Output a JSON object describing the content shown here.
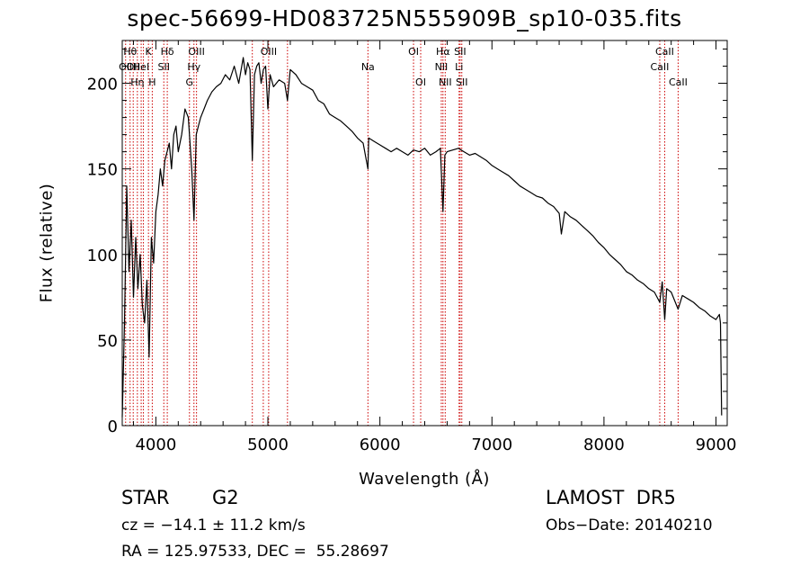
{
  "title": "spec-56699-HD083725N555909B_sp10-035.fits",
  "info": {
    "object_class": "STAR",
    "subclass": "G2",
    "survey": "LAMOST  DR5",
    "cz": "cz = −14.1 ± 11.2 km/s",
    "obs_date": "Obs−Date: 20140210",
    "coords": "RA = 125.97533, DEC =  55.28697"
  },
  "chart_data": {
    "type": "line",
    "xlabel": "Wavelength (Å)",
    "ylabel": "Flux (relative)",
    "xlim": [
      3700,
      9100
    ],
    "ylim": [
      0,
      225
    ],
    "xticks": [
      4000,
      5000,
      6000,
      7000,
      8000,
      9000
    ],
    "yticks": [
      0,
      50,
      100,
      150,
      200
    ],
    "line_color": "#000000",
    "marker_color": "#cc0000",
    "series": [
      {
        "x": [
          3700,
          3720,
          3740,
          3760,
          3780,
          3800,
          3820,
          3840,
          3860,
          3880,
          3900,
          3920,
          3940,
          3960,
          3980,
          4000,
          4020,
          4040,
          4060,
          4080,
          4100,
          4120,
          4140,
          4160,
          4180,
          4200,
          4230,
          4260,
          4290,
          4320,
          4340,
          4360,
          4380,
          4400,
          4430,
          4460,
          4500,
          4540,
          4580,
          4620,
          4660,
          4700,
          4740,
          4780,
          4800,
          4820,
          4840,
          4861,
          4880,
          4900,
          4920,
          4940,
          4960,
          4980,
          5000,
          5020,
          5050,
          5100,
          5150,
          5175,
          5200,
          5250,
          5300,
          5350,
          5400,
          5450,
          5500,
          5550,
          5600,
          5650,
          5700,
          5750,
          5800,
          5850,
          5893,
          5900,
          5950,
          6000,
          6050,
          6100,
          6150,
          6200,
          6250,
          6300,
          6350,
          6400,
          6450,
          6500,
          6540,
          6563,
          6580,
          6600,
          6650,
          6700,
          6750,
          6800,
          6850,
          6900,
          6950,
          7000,
          7050,
          7100,
          7150,
          7200,
          7250,
          7300,
          7350,
          7400,
          7450,
          7500,
          7550,
          7600,
          7620,
          7650,
          7700,
          7750,
          7800,
          7850,
          7900,
          7950,
          8000,
          8050,
          8100,
          8150,
          8200,
          8250,
          8300,
          8350,
          8400,
          8450,
          8498,
          8520,
          8542,
          8560,
          8600,
          8662,
          8700,
          8750,
          8800,
          8850,
          8900,
          8950,
          9000,
          9030,
          9040,
          9050
        ],
        "y": [
          5,
          60,
          140,
          90,
          120,
          75,
          110,
          80,
          100,
          70,
          60,
          85,
          40,
          110,
          95,
          125,
          135,
          150,
          140,
          155,
          160,
          165,
          150,
          170,
          175,
          160,
          170,
          185,
          180,
          150,
          120,
          170,
          175,
          180,
          185,
          190,
          195,
          198,
          200,
          205,
          202,
          210,
          200,
          215,
          205,
          212,
          208,
          155,
          205,
          210,
          212,
          200,
          208,
          210,
          185,
          205,
          198,
          202,
          200,
          190,
          208,
          205,
          200,
          198,
          196,
          190,
          188,
          182,
          180,
          178,
          175,
          172,
          168,
          165,
          150,
          168,
          166,
          164,
          162,
          160,
          162,
          160,
          158,
          161,
          160,
          162,
          158,
          160,
          162,
          125,
          158,
          160,
          161,
          162,
          160,
          158,
          159,
          157,
          155,
          152,
          150,
          148,
          146,
          143,
          140,
          138,
          136,
          134,
          133,
          130,
          128,
          124,
          112,
          125,
          122,
          120,
          117,
          114,
          111,
          107,
          104,
          100,
          97,
          94,
          90,
          88,
          85,
          83,
          80,
          78,
          72,
          84,
          62,
          80,
          78,
          68,
          76,
          74,
          72,
          69,
          67,
          64,
          62,
          65,
          60,
          6
        ]
      }
    ],
    "line_markers": [
      {
        "wl": 3730,
        "label": "OII",
        "row": 2
      },
      {
        "wl": 3770,
        "label": "Hθ",
        "row": 1
      },
      {
        "wl": 3798,
        "label": "OII",
        "row": 2
      },
      {
        "wl": 3835,
        "label": "Hη",
        "row": 3
      },
      {
        "wl": 3869,
        "label": "HeI",
        "row": 2
      },
      {
        "wl": 3889,
        "label": "",
        "row": 0
      },
      {
        "wl": 3934,
        "label": "K",
        "row": 1
      },
      {
        "wl": 3968,
        "label": "H",
        "row": 3
      },
      {
        "wl": 4071,
        "label": "SII",
        "row": 2
      },
      {
        "wl": 4102,
        "label": "Hδ",
        "row": 1
      },
      {
        "wl": 4300,
        "label": "G",
        "row": 3
      },
      {
        "wl": 4340,
        "label": "Hγ",
        "row": 2
      },
      {
        "wl": 4363,
        "label": "OIII",
        "row": 1
      },
      {
        "wl": 4861,
        "label": "",
        "row": 0
      },
      {
        "wl": 4959,
        "label": "",
        "row": 0
      },
      {
        "wl": 5007,
        "label": "OIII",
        "row": 1
      },
      {
        "wl": 5175,
        "label": "",
        "row": 0
      },
      {
        "wl": 5893,
        "label": "Na",
        "row": 2
      },
      {
        "wl": 6300,
        "label": "OI",
        "row": 1
      },
      {
        "wl": 6364,
        "label": "OI",
        "row": 3
      },
      {
        "wl": 6548,
        "label": "NII",
        "row": 2
      },
      {
        "wl": 6563,
        "label": "Hα",
        "row": 1
      },
      {
        "wl": 6583,
        "label": "NII",
        "row": 3
      },
      {
        "wl": 6707,
        "label": "Li",
        "row": 2
      },
      {
        "wl": 6716,
        "label": "SII",
        "row": 1
      },
      {
        "wl": 6731,
        "label": "SII",
        "row": 3
      },
      {
        "wl": 8498,
        "label": "CaII",
        "row": 2
      },
      {
        "wl": 8542,
        "label": "CaII",
        "row": 1
      },
      {
        "wl": 8662,
        "label": "CaII",
        "row": 3
      }
    ]
  }
}
